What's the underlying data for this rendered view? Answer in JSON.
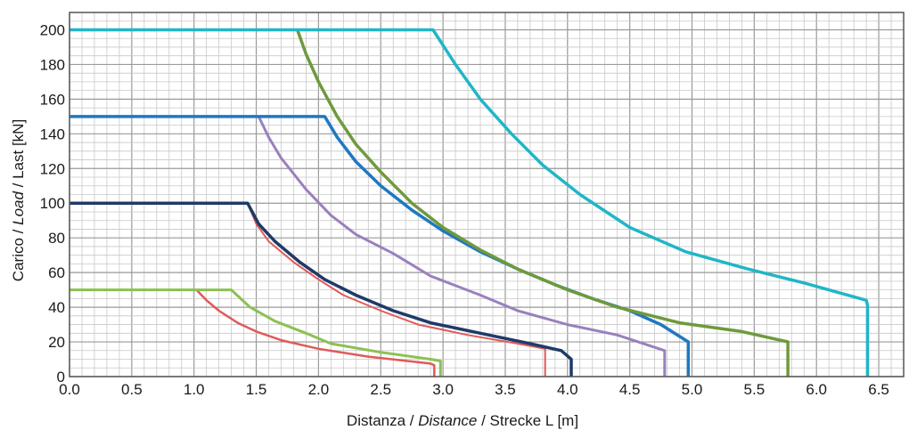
{
  "chart_data": {
    "type": "line",
    "xlabel": {
      "part1": "Distanza / ",
      "part2": "Distance",
      "part3": " / Strecke  L [m]"
    },
    "ylabel": {
      "part1": "Carico / ",
      "part2": "Load",
      "part3": " / Last [kN]"
    },
    "xlim": [
      0,
      6.7
    ],
    "ylim": [
      0,
      210
    ],
    "xticks": [
      0.0,
      0.5,
      1.0,
      1.5,
      2.0,
      2.5,
      3.0,
      3.5,
      4.0,
      4.5,
      5.0,
      5.5,
      6.0,
      6.5
    ],
    "xtick_labels": [
      "0.0",
      "0.5",
      "1.0",
      "1.5",
      "2.0",
      "2.5",
      "3.0",
      "3.5",
      "4.0",
      "4.5",
      "5.0",
      "5.5",
      "6.0",
      "6.5"
    ],
    "yticks": [
      0,
      20,
      40,
      60,
      80,
      100,
      120,
      140,
      160,
      180,
      200
    ],
    "ytick_labels": [
      "0",
      "20",
      "40",
      "60",
      "80",
      "100",
      "120",
      "140",
      "160",
      "180",
      "200"
    ],
    "grid": true,
    "minor_grid_x_step": 0.1,
    "minor_grid_y_step": 5,
    "series": [
      {
        "color": "#e05a5a",
        "width": 2.5,
        "points": [
          [
            0,
            50
          ],
          [
            1.02,
            50
          ],
          [
            1.1,
            44
          ],
          [
            1.2,
            38
          ],
          [
            1.35,
            31
          ],
          [
            1.5,
            26
          ],
          [
            1.7,
            21
          ],
          [
            2.0,
            16
          ],
          [
            2.4,
            11.5
          ],
          [
            2.9,
            7.5
          ],
          [
            2.93,
            6.5
          ],
          [
            2.93,
            0
          ]
        ]
      },
      {
        "color": "#8cc153",
        "width": 3,
        "points": [
          [
            0,
            50
          ],
          [
            1.3,
            50
          ],
          [
            1.45,
            40
          ],
          [
            1.65,
            32
          ],
          [
            1.9,
            25
          ],
          [
            2.1,
            19
          ],
          [
            2.5,
            14
          ],
          [
            2.9,
            10
          ],
          [
            2.98,
            9
          ],
          [
            2.98,
            0
          ]
        ]
      },
      {
        "color": "#e05a5a",
        "width": 2,
        "points": [
          [
            1.43,
            100
          ],
          [
            1.5,
            88
          ],
          [
            1.6,
            78
          ],
          [
            1.8,
            66
          ],
          [
            2.0,
            56
          ],
          [
            2.2,
            47
          ],
          [
            2.5,
            38
          ],
          [
            2.8,
            30
          ],
          [
            3.2,
            24
          ],
          [
            3.6,
            19
          ],
          [
            3.82,
            16
          ],
          [
            3.82,
            0
          ]
        ]
      },
      {
        "color": "#1f3a68",
        "width": 3.5,
        "points": [
          [
            0,
            100
          ],
          [
            1.43,
            100
          ],
          [
            1.52,
            88
          ],
          [
            1.65,
            78
          ],
          [
            1.85,
            66
          ],
          [
            2.05,
            56
          ],
          [
            2.3,
            47
          ],
          [
            2.6,
            38
          ],
          [
            2.9,
            31
          ],
          [
            3.3,
            25
          ],
          [
            3.7,
            19
          ],
          [
            3.95,
            15
          ],
          [
            4.03,
            10
          ],
          [
            4.03,
            0
          ]
        ]
      },
      {
        "color": "#9a80be",
        "width": 3,
        "points": [
          [
            1.52,
            150
          ],
          [
            1.6,
            138
          ],
          [
            1.7,
            126
          ],
          [
            1.9,
            108
          ],
          [
            2.1,
            93
          ],
          [
            2.3,
            82
          ],
          [
            2.6,
            71
          ],
          [
            2.9,
            58
          ],
          [
            3.3,
            47
          ],
          [
            3.6,
            38
          ],
          [
            4.0,
            30
          ],
          [
            4.4,
            24
          ],
          [
            4.78,
            15
          ],
          [
            4.78,
            0
          ]
        ]
      },
      {
        "color": "#1f78c1",
        "width": 3.5,
        "points": [
          [
            0,
            150
          ],
          [
            2.05,
            150
          ],
          [
            2.15,
            138
          ],
          [
            2.3,
            124
          ],
          [
            2.5,
            110
          ],
          [
            2.75,
            96
          ],
          [
            3.0,
            84
          ],
          [
            3.3,
            72
          ],
          [
            3.6,
            62
          ],
          [
            3.9,
            53
          ],
          [
            4.2,
            45
          ],
          [
            4.5,
            38
          ],
          [
            4.75,
            30
          ],
          [
            4.97,
            20
          ],
          [
            4.97,
            0
          ]
        ]
      },
      {
        "color": "#6e9a3c",
        "width": 3.5,
        "points": [
          [
            1.83,
            200
          ],
          [
            1.9,
            186
          ],
          [
            2.0,
            170
          ],
          [
            2.15,
            150
          ],
          [
            2.3,
            134
          ],
          [
            2.5,
            118
          ],
          [
            2.75,
            100
          ],
          [
            3.0,
            86
          ],
          [
            3.3,
            73
          ],
          [
            3.6,
            62
          ],
          [
            4.0,
            50
          ],
          [
            4.4,
            40
          ],
          [
            4.9,
            31
          ],
          [
            5.4,
            26
          ],
          [
            5.77,
            20
          ],
          [
            5.77,
            0
          ]
        ]
      },
      {
        "color": "#1fb6c8",
        "width": 3.5,
        "points": [
          [
            0,
            200
          ],
          [
            2.92,
            200
          ],
          [
            3.1,
            180
          ],
          [
            3.3,
            160
          ],
          [
            3.55,
            140
          ],
          [
            3.8,
            122
          ],
          [
            4.1,
            105
          ],
          [
            4.5,
            86
          ],
          [
            4.95,
            72
          ],
          [
            5.45,
            62
          ],
          [
            5.9,
            54
          ],
          [
            6.4,
            44
          ],
          [
            6.41,
            41
          ],
          [
            6.41,
            0
          ]
        ]
      }
    ]
  }
}
